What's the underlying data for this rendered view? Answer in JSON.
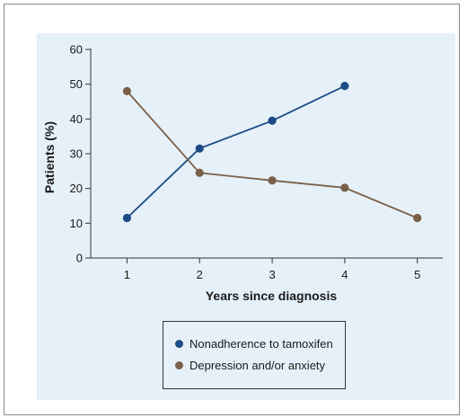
{
  "chart_data": {
    "type": "line",
    "title": "",
    "xlabel": "Years since diagnosis",
    "ylabel": "Patients (%)",
    "x": [
      1,
      2,
      3,
      4,
      5
    ],
    "xticks": [
      "1",
      "2",
      "3",
      "4",
      "5"
    ],
    "yticks": [
      "0",
      "10",
      "20",
      "30",
      "40",
      "50",
      "60"
    ],
    "xlim": [
      0.5,
      5.35
    ],
    "ylim": [
      0,
      60
    ],
    "grid": false,
    "legend_position": "bottom-center",
    "series": [
      {
        "name": "Nonadherence to tamoxifen",
        "color": "#1d4b85",
        "x": [
          1,
          2,
          3,
          4
        ],
        "values": [
          11.5,
          31.5,
          39.5,
          49.5
        ]
      },
      {
        "name": "Depression and/or anxiety",
        "color": "#7a6048",
        "x": [
          1,
          2,
          3,
          4,
          5
        ],
        "values": [
          48,
          24.5,
          22.3,
          20.2,
          11.5
        ]
      }
    ],
    "panel_color": "#e6f0f9"
  }
}
